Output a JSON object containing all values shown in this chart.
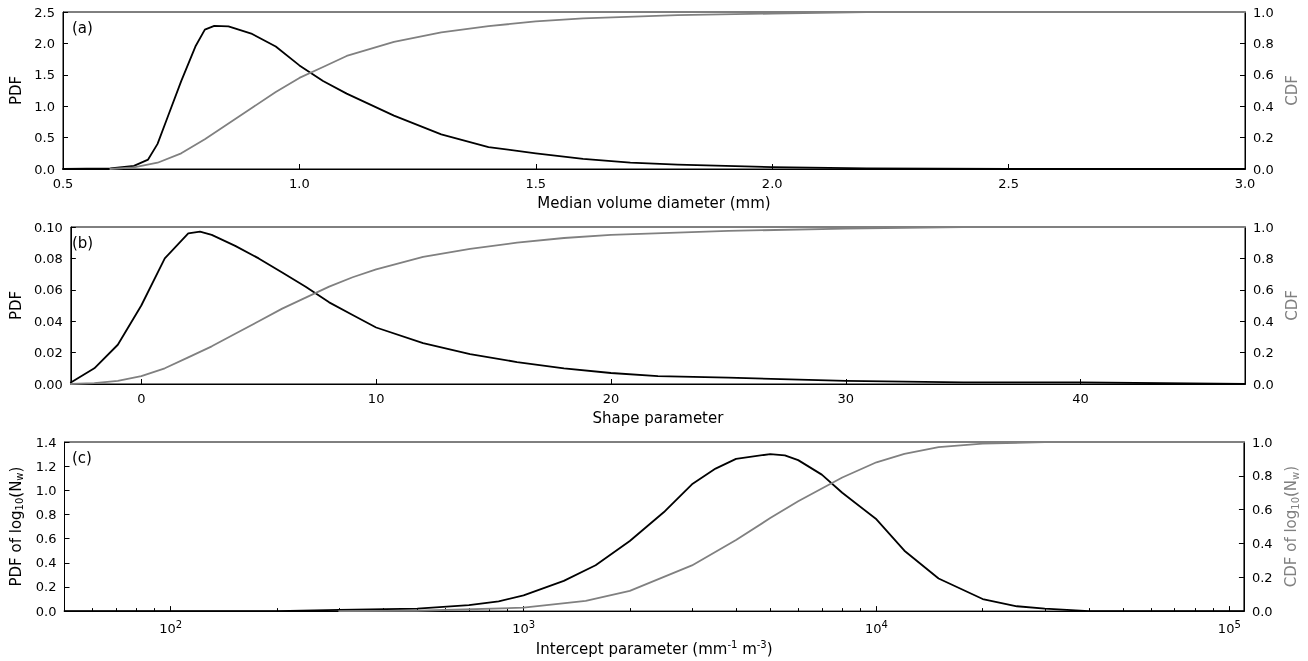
{
  "chart_data": [
    {
      "type": "line",
      "xlabel": "Median volume diameter (mm)",
      "ylabel": "PDF",
      "y2label": "CDF",
      "annotations": [
        "(a)"
      ],
      "grid": false,
      "marker": "none",
      "line_style": "solid",
      "xlim": [
        0.5,
        3
      ],
      "xticks": [
        {
          "value": 0.5,
          "label": "0.5"
        },
        {
          "value": 1,
          "label": "1.0"
        },
        {
          "value": 1.5,
          "label": "1.5"
        },
        {
          "value": 2,
          "label": "2.0"
        },
        {
          "value": 2.5,
          "label": "2.5"
        },
        {
          "value": 3,
          "label": "3.0"
        }
      ],
      "ylim": [
        0,
        2.5
      ],
      "yticks": [
        {
          "value": 0,
          "label": "0.0"
        },
        {
          "value": 0.5,
          "label": "0.5"
        },
        {
          "value": 1,
          "label": "1.0"
        },
        {
          "value": 1.5,
          "label": "1.5"
        },
        {
          "value": 2,
          "label": "2.0"
        },
        {
          "value": 2.5,
          "label": "2.5"
        }
      ],
      "y2lim": [
        0,
        1
      ],
      "y2ticks": [
        {
          "value": 0,
          "label": "0.0"
        },
        {
          "value": 0.2,
          "label": "0.2"
        },
        {
          "value": 0.4,
          "label": "0.4"
        },
        {
          "value": 0.6,
          "label": "0.6"
        },
        {
          "value": 0.8,
          "label": "0.8"
        },
        {
          "value": 1,
          "label": "1.0"
        }
      ],
      "series": [
        {
          "color": "#000000",
          "x": [
            0.5,
            0.6,
            0.65,
            0.68,
            0.7,
            0.72,
            0.75,
            0.78,
            0.8,
            0.82,
            0.85,
            0.9,
            0.95,
            1.0,
            1.05,
            1.1,
            1.2,
            1.3,
            1.4,
            1.5,
            1.6,
            1.7,
            1.8,
            2.0,
            2.2,
            2.5,
            3.0
          ],
          "values": [
            0,
            0.01,
            0.05,
            0.15,
            0.4,
            0.8,
            1.4,
            1.95,
            2.22,
            2.28,
            2.27,
            2.15,
            1.95,
            1.65,
            1.4,
            1.2,
            0.85,
            0.55,
            0.35,
            0.25,
            0.16,
            0.1,
            0.07,
            0.03,
            0.01,
            0,
            0
          ]
        },
        {
          "color": "#808080",
          "axis": "y2",
          "x": [
            0.6,
            0.65,
            0.7,
            0.75,
            0.8,
            0.85,
            0.9,
            0.95,
            1.0,
            1.05,
            1.1,
            1.2,
            1.3,
            1.4,
            1.5,
            1.6,
            1.8,
            2.0,
            2.2,
            3.0
          ],
          "values": [
            0,
            0.01,
            0.04,
            0.1,
            0.19,
            0.29,
            0.39,
            0.49,
            0.58,
            0.65,
            0.72,
            0.81,
            0.87,
            0.91,
            0.94,
            0.96,
            0.98,
            0.99,
            1.0,
            1.0
          ]
        }
      ]
    },
    {
      "type": "line",
      "xlabel": "Shape parameter",
      "ylabel": "PDF",
      "y2label": "CDF",
      "annotations": [
        "(b)"
      ],
      "grid": false,
      "marker": "none",
      "line_style": "solid",
      "xlim": [
        -3,
        47
      ],
      "xticks": [
        0,
        10,
        20,
        30,
        40
      ],
      "ylim": [
        0,
        0.1
      ],
      "yticks": [
        {
          "value": 0,
          "label": "0.00"
        },
        {
          "value": 0.02,
          "label": "0.02"
        },
        {
          "value": 0.04,
          "label": "0.04"
        },
        {
          "value": 0.06,
          "label": "0.06"
        },
        {
          "value": 0.08,
          "label": "0.08"
        },
        {
          "value": 0.1,
          "label": "0.10"
        }
      ],
      "y2lim": [
        0,
        1
      ],
      "y2ticks": [
        {
          "value": 0,
          "label": "0.0"
        },
        {
          "value": 0.2,
          "label": "0.2"
        },
        {
          "value": 0.4,
          "label": "0.4"
        },
        {
          "value": 0.6,
          "label": "0.6"
        },
        {
          "value": 0.8,
          "label": "0.8"
        },
        {
          "value": 1,
          "label": "1.0"
        }
      ],
      "series": [
        {
          "color": "#000000",
          "x": [
            -3,
            -2,
            -1,
            0,
            1,
            2,
            2.5,
            3,
            4,
            5,
            6,
            7,
            8,
            9,
            10,
            12,
            14,
            16,
            18,
            20,
            22,
            25,
            30,
            35,
            40,
            47
          ],
          "values": [
            0.001,
            0.01,
            0.025,
            0.05,
            0.08,
            0.096,
            0.097,
            0.095,
            0.088,
            0.08,
            0.071,
            0.062,
            0.052,
            0.044,
            0.036,
            0.026,
            0.019,
            0.014,
            0.01,
            0.007,
            0.005,
            0.004,
            0.002,
            0.001,
            0.001,
            0
          ]
        },
        {
          "color": "#808080",
          "axis": "y2",
          "x": [
            -3,
            -2,
            -1,
            0,
            1,
            2,
            3,
            4,
            5,
            6,
            7,
            8,
            9,
            10,
            12,
            14,
            16,
            18,
            20,
            25,
            30,
            35,
            47
          ],
          "values": [
            0,
            0.005,
            0.02,
            0.05,
            0.1,
            0.17,
            0.24,
            0.32,
            0.4,
            0.48,
            0.55,
            0.62,
            0.68,
            0.73,
            0.81,
            0.86,
            0.9,
            0.93,
            0.95,
            0.975,
            0.99,
            1.0,
            1.0
          ]
        }
      ]
    },
    {
      "type": "line",
      "xlabel": "Intercept parameter (mm$^{-1}$ m$^{-3}$)",
      "ylabel": "PDF of log$_{10}$(N$_{w}$)",
      "y2label": "CDF of log$_{10}$(N$_{w}$)",
      "annotations": [
        "(c)"
      ],
      "grid": false,
      "marker": "none",
      "line_style": "solid",
      "log": "x",
      "xlim": [
        50,
        110000
      ],
      "xticks": [
        {
          "value": 100,
          "label": "10$^{2}$"
        },
        {
          "value": 1000,
          "label": "10$^{3}$"
        },
        {
          "value": 10000,
          "label": "10$^{4}$"
        },
        {
          "value": 100000,
          "label": "10$^{5}$"
        }
      ],
      "ylim": [
        0,
        1.4
      ],
      "yticks": [
        {
          "value": 0,
          "label": "0.0"
        },
        {
          "value": 0.2,
          "label": "0.2"
        },
        {
          "value": 0.4,
          "label": "0.4"
        },
        {
          "value": 0.6,
          "label": "0.6"
        },
        {
          "value": 0.8,
          "label": "0.8"
        },
        {
          "value": 1,
          "label": "1.0"
        },
        {
          "value": 1.2,
          "label": "1.2"
        },
        {
          "value": 1.4,
          "label": "1.4"
        }
      ],
      "y2lim": [
        0,
        1
      ],
      "y2ticks": [
        {
          "value": 0,
          "label": "0.0"
        },
        {
          "value": 0.2,
          "label": "0.2"
        },
        {
          "value": 0.4,
          "label": "0.4"
        },
        {
          "value": 0.6,
          "label": "0.6"
        },
        {
          "value": 0.8,
          "label": "0.8"
        },
        {
          "value": 1,
          "label": "1.0"
        }
      ],
      "series": [
        {
          "color": "#000000",
          "x": [
            50,
            200,
            300,
            500,
            700,
            850,
            1000,
            1300,
            1600,
            2000,
            2500,
            3000,
            3500,
            4000,
            5000,
            5500,
            6000,
            7000,
            8000,
            10000,
            12000,
            15000,
            20000,
            25000,
            30000,
            40000,
            110000
          ],
          "values": [
            0,
            0,
            0.01,
            0.02,
            0.05,
            0.08,
            0.13,
            0.25,
            0.38,
            0.58,
            0.82,
            1.05,
            1.18,
            1.26,
            1.3,
            1.29,
            1.25,
            1.13,
            0.98,
            0.76,
            0.5,
            0.27,
            0.1,
            0.04,
            0.02,
            0,
            0
          ]
        },
        {
          "color": "#808080",
          "axis": "y2",
          "x": [
            300,
            500,
            1000,
            1500,
            2000,
            3000,
            4000,
            5000,
            6000,
            8000,
            10000,
            12000,
            15000,
            20000,
            30000,
            110000
          ],
          "values": [
            0,
            0.002,
            0.02,
            0.06,
            0.12,
            0.27,
            0.42,
            0.55,
            0.65,
            0.79,
            0.88,
            0.93,
            0.97,
            0.99,
            1.0,
            1.0
          ]
        }
      ]
    }
  ]
}
